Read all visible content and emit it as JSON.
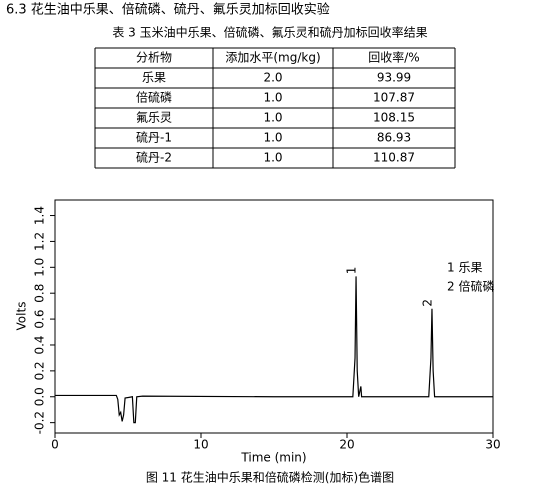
{
  "heading": "6.3 花生油中乐果、倍硫磷、硫丹、氟乐灵加标回收实验",
  "table": {
    "caption": "表 3 玉米油中乐果、倍硫磷、氟乐灵和硫丹加标回收率结果",
    "header": [
      "分析物",
      "添加水平(mg/kg)",
      "回收率/%"
    ],
    "rows": [
      [
        "乐果",
        "2.0",
        "93.99"
      ],
      [
        "倍硫磷",
        "1.0",
        "107.87"
      ],
      [
        "氟乐灵",
        "1.0",
        "108.15"
      ],
      [
        "硫丹-1",
        "1.0",
        "86.93"
      ],
      [
        "硫丹-2",
        "1.0",
        "110.87"
      ]
    ]
  },
  "figure": {
    "chart_data": {
      "type": "line",
      "xlabel": "Time (min)",
      "ylabel": "Volts",
      "xlim": [
        0,
        30
      ],
      "ylim": [
        -0.28,
        1.52
      ],
      "xticks": [
        0,
        10,
        20,
        30
      ],
      "yticks": [
        {
          "value": -0.2,
          "label": "-0.2"
        },
        {
          "value": 0,
          "label": "0.0"
        },
        0.2,
        0.4,
        0.6,
        0.8,
        {
          "value": 1,
          "label": "1.0"
        },
        1.2,
        1.4
      ],
      "series": [
        {
          "color": "#000000",
          "x": [
            0,
            4.2,
            4.3,
            4.4,
            4.5,
            4.6,
            4.7,
            4.8,
            5.3,
            5.4,
            5.5,
            5.6,
            6,
            15,
            20.4,
            20.55,
            20.62,
            20.7,
            20.8,
            20.95,
            21.0,
            25.6,
            25.75,
            25.82,
            25.9,
            26.0,
            30
          ],
          "values": [
            0.01,
            0.01,
            -0.02,
            -0.14,
            -0.12,
            -0.19,
            -0.14,
            -0.01,
            0.0,
            -0.2,
            -0.2,
            0.0,
            0.005,
            0.0,
            0.0,
            0.3,
            0.93,
            0.2,
            0.0,
            0.08,
            0.0,
            0.0,
            0.3,
            0.68,
            0.2,
            0.0,
            0.0
          ]
        }
      ],
      "peaks": [
        {
          "label": "1",
          "x": 20.62,
          "y": 0.93
        },
        {
          "label": "2",
          "x": 25.82,
          "y": 0.68
        }
      ],
      "legend": [
        "1  乐果",
        "2  倍硫磷"
      ]
    },
    "caption": "图 11  花生油中乐果和倍硫磷检测(加标)色谱图"
  }
}
